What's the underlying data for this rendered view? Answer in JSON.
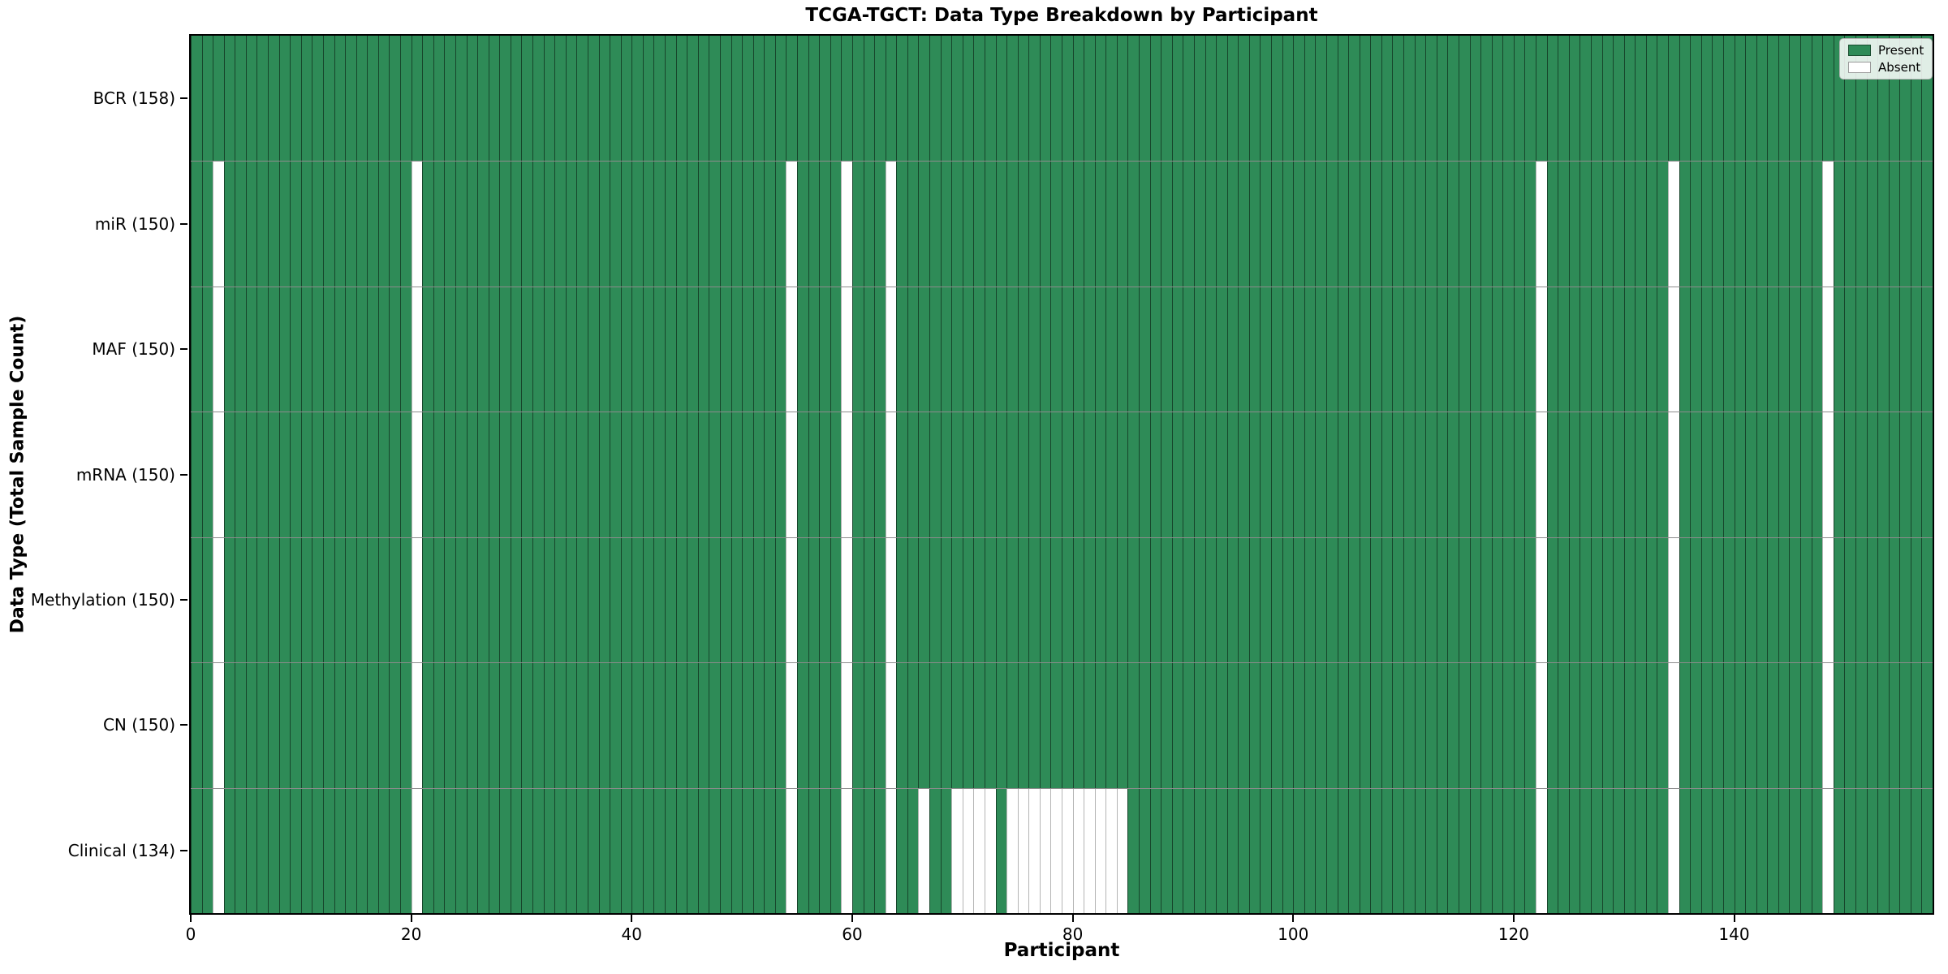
{
  "chart_data": {
    "type": "heatmap",
    "title": "TCGA-TGCT: Data Type Breakdown by Participant",
    "xlabel": "Participant",
    "ylabel": "Data Type (Total Sample Count)",
    "grid": false,
    "legend_position": "upper right",
    "colors": {
      "present": "#2e8b57",
      "absent": "#ffffff"
    },
    "legend": {
      "entries": [
        {
          "key": "present",
          "label": "Present",
          "color": "#2e8b57"
        },
        {
          "key": "absent",
          "label": "Absent",
          "color": "#ffffff"
        }
      ]
    },
    "x_axis": {
      "label": "Participant",
      "ticks": [
        0,
        20,
        40,
        60,
        80,
        100,
        120,
        140
      ],
      "range": [
        0,
        158
      ],
      "n_participants": 158
    },
    "rows": [
      {
        "key": "bcr",
        "label": "BCR (158)",
        "data_type": "BCR",
        "total_sample_count": 158,
        "absent_participants": []
      },
      {
        "key": "mir",
        "label": "miR (150)",
        "data_type": "miR",
        "total_sample_count": 150,
        "absent_participants": [
          2,
          20,
          54,
          59,
          63,
          122,
          134,
          148
        ]
      },
      {
        "key": "maf",
        "label": "MAF (150)",
        "data_type": "MAF",
        "total_sample_count": 150,
        "absent_participants": [
          2,
          20,
          54,
          59,
          63,
          122,
          134,
          148
        ]
      },
      {
        "key": "mrna",
        "label": "mRNA (150)",
        "data_type": "mRNA",
        "total_sample_count": 150,
        "absent_participants": [
          2,
          20,
          54,
          59,
          63,
          122,
          134,
          148
        ]
      },
      {
        "key": "methylation",
        "label": "Methylation (150)",
        "data_type": "Methylation",
        "total_sample_count": 150,
        "absent_participants": [
          2,
          20,
          54,
          59,
          63,
          122,
          134,
          148
        ]
      },
      {
        "key": "cn",
        "label": "CN (150)",
        "data_type": "CN",
        "total_sample_count": 150,
        "absent_participants": [
          2,
          20,
          54,
          59,
          63,
          122,
          134,
          148
        ]
      },
      {
        "key": "clinical",
        "label": "Clinical (134)",
        "data_type": "Clinical",
        "total_sample_count": 134,
        "absent_participants": [
          2,
          20,
          54,
          59,
          63,
          66,
          69,
          70,
          71,
          72,
          74,
          75,
          76,
          77,
          78,
          79,
          80,
          81,
          82,
          83,
          84,
          122,
          134,
          148
        ]
      }
    ]
  }
}
